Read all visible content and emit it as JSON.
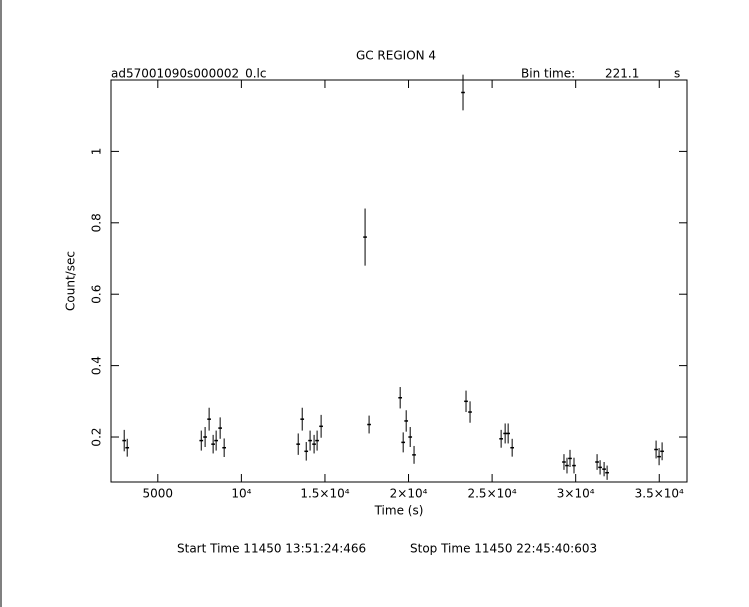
{
  "chart_data": {
    "type": "errorbar",
    "title": "GC REGION 4",
    "file_name": "ad57001090s000002_0.lc",
    "bin_time_label": "Bin time:",
    "bin_time": 221.1,
    "bin_time_unit": "s",
    "x_label": "Time (s)",
    "y_label": "Count/sec",
    "start_time": "Start Time 11450 13:51:24:466",
    "stop_time": "Stop Time 11450 22:45:40:603",
    "color": "#000000",
    "xlim": [
      2200,
      36660
    ],
    "ylim": [
      0.074,
      1.2
    ],
    "xticks": [
      5000,
      {
        "value": 10000,
        "label": "10⁴"
      },
      {
        "value": 15000,
        "label": "1.5×10⁴"
      },
      {
        "value": 20000,
        "label": "2×10⁴"
      },
      {
        "value": 25000,
        "label": "2.5×10⁴"
      },
      {
        "value": 30000,
        "label": "3×10⁴"
      },
      {
        "value": 35000,
        "label": "3.5×10⁴"
      }
    ],
    "yticks": [
      0.2,
      0.4,
      0.6,
      0.8,
      1
    ],
    "x": [
      2990,
      3170,
      7600,
      7830,
      8070,
      8310,
      8490,
      8730,
      8970,
      13400,
      13640,
      13880,
      14110,
      14350,
      14530,
      14770,
      17400,
      17640,
      19500,
      19680,
      19860,
      20100,
      20330,
      23260,
      23440,
      23680,
      25540,
      25780,
      25960,
      26200,
      29300,
      29480,
      29660,
      29900,
      31280,
      31460,
      31700,
      31880,
      34810,
      34990,
      35170
    ],
    "y": [
      0.19,
      0.17,
      0.19,
      0.2,
      0.25,
      0.18,
      0.19,
      0.225,
      0.17,
      0.18,
      0.25,
      0.16,
      0.19,
      0.18,
      0.19,
      0.23,
      0.76,
      0.235,
      0.31,
      0.185,
      0.245,
      0.2,
      0.15,
      1.165,
      0.3,
      0.27,
      0.195,
      0.21,
      0.21,
      0.17,
      0.13,
      0.12,
      0.14,
      0.12,
      0.13,
      0.115,
      0.11,
      0.1,
      0.165,
      0.145,
      0.16
    ],
    "yerr": [
      0.03,
      0.025,
      0.028,
      0.028,
      0.032,
      0.026,
      0.028,
      0.03,
      0.026,
      0.03,
      0.032,
      0.026,
      0.028,
      0.026,
      0.028,
      0.032,
      0.08,
      0.025,
      0.03,
      0.028,
      0.03,
      0.028,
      0.025,
      0.05,
      0.03,
      0.03,
      0.025,
      0.028,
      0.028,
      0.025,
      0.022,
      0.022,
      0.024,
      0.022,
      0.022,
      0.02,
      0.02,
      0.02,
      0.025,
      0.024,
      0.025
    ]
  }
}
